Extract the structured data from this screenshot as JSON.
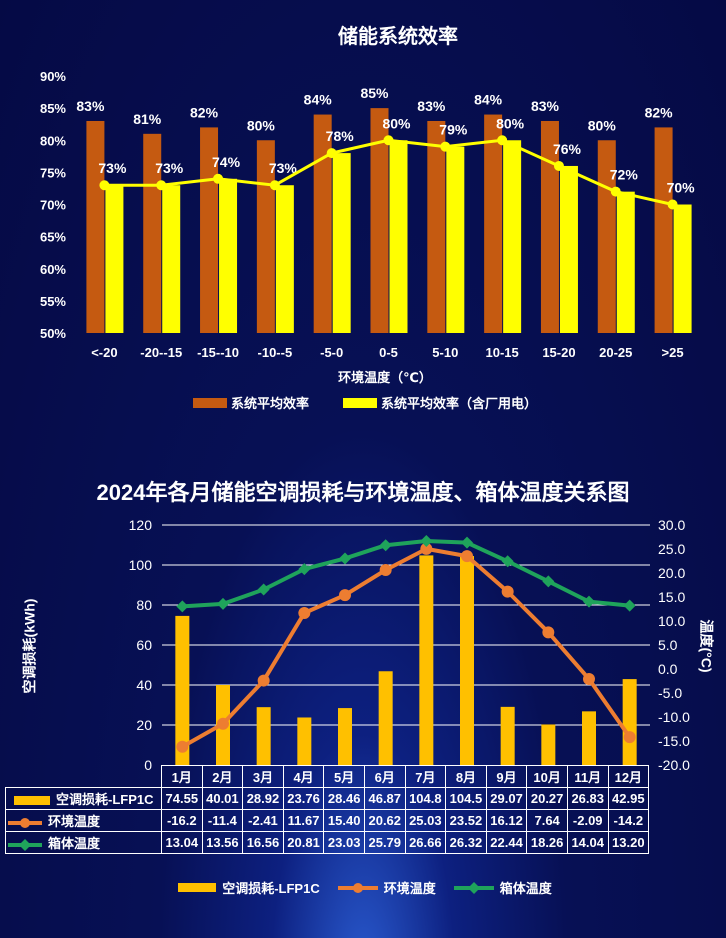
{
  "chart_data": [
    {
      "type": "bar",
      "title": "储能系统效率",
      "xlabel": "环境温度（℃）",
      "ylabel": "",
      "ylim": [
        50,
        90
      ],
      "yticks": [
        "50%",
        "55%",
        "60%",
        "65%",
        "70%",
        "75%",
        "80%",
        "85%",
        "90%"
      ],
      "categories": [
        "<-20",
        "-20--15",
        "-15--10",
        "-10--5",
        "-5-0",
        "0-5",
        "5-10",
        "10-15",
        "15-20",
        "20-25",
        ">25"
      ],
      "series": [
        {
          "name": "系统平均效率",
          "type": "bar",
          "color": "#c55a11",
          "values": [
            83,
            81,
            82,
            80,
            84,
            85,
            83,
            84,
            83,
            80,
            82
          ]
        },
        {
          "name": "系统平均效率（含厂用电）",
          "type": "bar+line",
          "color": "#ffff00",
          "values": [
            73,
            73,
            74,
            73,
            78,
            80,
            79,
            80,
            76,
            72,
            70
          ]
        }
      ],
      "legend": "bottom"
    },
    {
      "type": "bar",
      "title": "2024年各月储能空调损耗与环境温度、箱体温度关系图",
      "ylabel": "空调损耗(kWh)",
      "y2label": "温度(°C)",
      "ylim": [
        0,
        120
      ],
      "y2lim": [
        -20,
        30
      ],
      "yticks": [
        "0",
        "20",
        "40",
        "60",
        "80",
        "100",
        "120"
      ],
      "y2ticks": [
        "-20.0",
        "-15.0",
        "-10.0",
        "-5.0",
        "0.0",
        "5.0",
        "10.0",
        "15.0",
        "20.0",
        "25.0",
        "30.0"
      ],
      "categories": [
        "1月",
        "2月",
        "3月",
        "4月",
        "5月",
        "6月",
        "7月",
        "8月",
        "9月",
        "10月",
        "11月",
        "12月"
      ],
      "series": [
        {
          "name": "空调损耗-LFP1C",
          "type": "bar",
          "axis": "left",
          "color": "#ffc000",
          "values": [
            74.55,
            40.01,
            28.92,
            23.76,
            28.46,
            46.87,
            104.8,
            104.5,
            29.07,
            20.27,
            26.83,
            42.95
          ],
          "labels": [
            "74.55",
            "40.01",
            "28.92",
            "23.76",
            "28.46",
            "46.87",
            "104.8",
            "104.5",
            "29.07",
            "20.27",
            "26.83",
            "42.95"
          ]
        },
        {
          "name": "环境温度",
          "type": "line",
          "axis": "right",
          "color": "#ed7d31",
          "values": [
            -16.2,
            -11.4,
            -2.41,
            11.67,
            15.4,
            20.62,
            25.03,
            23.52,
            16.12,
            7.64,
            -2.09,
            -14.2
          ],
          "labels": [
            "-16.2",
            "-11.4",
            "-2.41",
            "11.67",
            "15.40",
            "20.62",
            "25.03",
            "23.52",
            "16.12",
            "7.64",
            "-2.09",
            "-14.2"
          ]
        },
        {
          "name": "箱体温度",
          "type": "line",
          "axis": "right",
          "color": "#1fa35b",
          "values": [
            13.04,
            13.56,
            16.56,
            20.81,
            23.03,
            25.79,
            26.66,
            26.32,
            22.44,
            18.26,
            14.04,
            13.2
          ],
          "labels": [
            "13.04",
            "13.56",
            "16.56",
            "20.81",
            "23.03",
            "25.79",
            "26.66",
            "26.32",
            "22.44",
            "18.26",
            "14.04",
            "13.20"
          ]
        }
      ],
      "legend": "bottom",
      "grid": true
    }
  ]
}
